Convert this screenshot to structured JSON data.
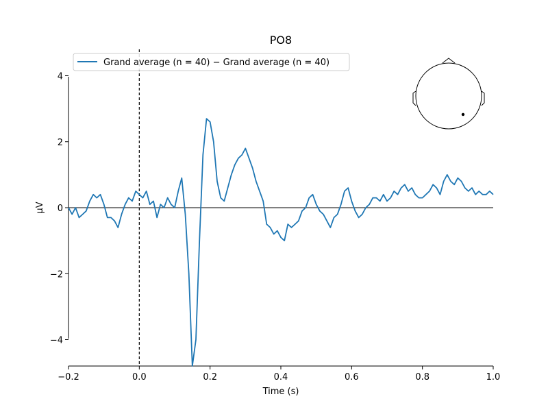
{
  "chart_data": {
    "type": "line",
    "title": "PO8",
    "xlabel": "Time (s)",
    "ylabel": "µV",
    "xlim": [
      -0.2,
      1.0
    ],
    "ylim": [
      -4.8,
      4.8
    ],
    "x_ticks": [
      -0.2,
      0.0,
      0.2,
      0.4,
      0.6,
      0.8,
      1.0
    ],
    "x_tick_labels": [
      "−0.2",
      "0.0",
      "0.2",
      "0.4",
      "0.6",
      "0.8",
      "1.0"
    ],
    "y_ticks": [
      -4,
      -2,
      0,
      2,
      4
    ],
    "y_tick_labels": [
      "−4",
      "−2",
      "0",
      "2",
      "4"
    ],
    "grid": false,
    "legend_position": "top-left",
    "zero_line": {
      "y": 0,
      "color": "#000000"
    },
    "stimulus_line": {
      "x": 0.0,
      "style": "dashed",
      "color": "#000000"
    },
    "sensor_inset": {
      "position": "top-right",
      "channel": "PO8"
    },
    "series": [
      {
        "name": "Grand average (n = 40) − Grand average (n = 40)",
        "color": "#1f77b4",
        "x": [
          -0.2,
          -0.19,
          -0.18,
          -0.17,
          -0.16,
          -0.15,
          -0.14,
          -0.13,
          -0.12,
          -0.11,
          -0.1,
          -0.09,
          -0.08,
          -0.07,
          -0.06,
          -0.05,
          -0.04,
          -0.03,
          -0.02,
          -0.01,
          0.0,
          0.01,
          0.02,
          0.03,
          0.04,
          0.05,
          0.06,
          0.07,
          0.08,
          0.09,
          0.1,
          0.11,
          0.12,
          0.13,
          0.14,
          0.15,
          0.16,
          0.17,
          0.18,
          0.19,
          0.2,
          0.21,
          0.22,
          0.23,
          0.24,
          0.25,
          0.26,
          0.27,
          0.28,
          0.29,
          0.3,
          0.31,
          0.32,
          0.33,
          0.34,
          0.35,
          0.36,
          0.37,
          0.38,
          0.39,
          0.4,
          0.41,
          0.42,
          0.43,
          0.44,
          0.45,
          0.46,
          0.47,
          0.48,
          0.49,
          0.5,
          0.51,
          0.52,
          0.53,
          0.54,
          0.55,
          0.56,
          0.57,
          0.58,
          0.59,
          0.6,
          0.61,
          0.62,
          0.63,
          0.64,
          0.65,
          0.66,
          0.67,
          0.68,
          0.69,
          0.7,
          0.71,
          0.72,
          0.73,
          0.74,
          0.75,
          0.76,
          0.77,
          0.78,
          0.79,
          0.8,
          0.81,
          0.82,
          0.83,
          0.84,
          0.85,
          0.86,
          0.87,
          0.88,
          0.89,
          0.9,
          0.91,
          0.92,
          0.93,
          0.94,
          0.95,
          0.96,
          0.97,
          0.98,
          0.99,
          1.0
        ],
        "y": [
          0.0,
          -0.2,
          0.0,
          -0.3,
          -0.2,
          -0.1,
          0.2,
          0.4,
          0.3,
          0.4,
          0.1,
          -0.3,
          -0.3,
          -0.4,
          -0.6,
          -0.2,
          0.1,
          0.3,
          0.2,
          0.5,
          0.4,
          0.3,
          0.5,
          0.1,
          0.2,
          -0.3,
          0.1,
          0.0,
          0.3,
          0.1,
          0.0,
          0.5,
          0.9,
          -0.2,
          -2.0,
          -4.8,
          -4.0,
          -1.0,
          1.6,
          2.7,
          2.6,
          2.0,
          0.8,
          0.3,
          0.2,
          0.6,
          1.0,
          1.3,
          1.5,
          1.6,
          1.8,
          1.5,
          1.2,
          0.8,
          0.5,
          0.2,
          -0.5,
          -0.6,
          -0.8,
          -0.7,
          -0.9,
          -1.0,
          -0.5,
          -0.6,
          -0.5,
          -0.4,
          -0.1,
          0.0,
          0.3,
          0.4,
          0.1,
          -0.1,
          -0.2,
          -0.4,
          -0.6,
          -0.3,
          -0.2,
          0.1,
          0.5,
          0.6,
          0.2,
          -0.1,
          -0.3,
          -0.2,
          0.0,
          0.1,
          0.3,
          0.3,
          0.2,
          0.4,
          0.2,
          0.3,
          0.5,
          0.4,
          0.6,
          0.7,
          0.5,
          0.6,
          0.4,
          0.3,
          0.3,
          0.4,
          0.5,
          0.7,
          0.6,
          0.4,
          0.8,
          1.0,
          0.8,
          0.7,
          0.9,
          0.8,
          0.6,
          0.5,
          0.6,
          0.4,
          0.5,
          0.4,
          0.4,
          0.5,
          0.4
        ]
      }
    ]
  }
}
